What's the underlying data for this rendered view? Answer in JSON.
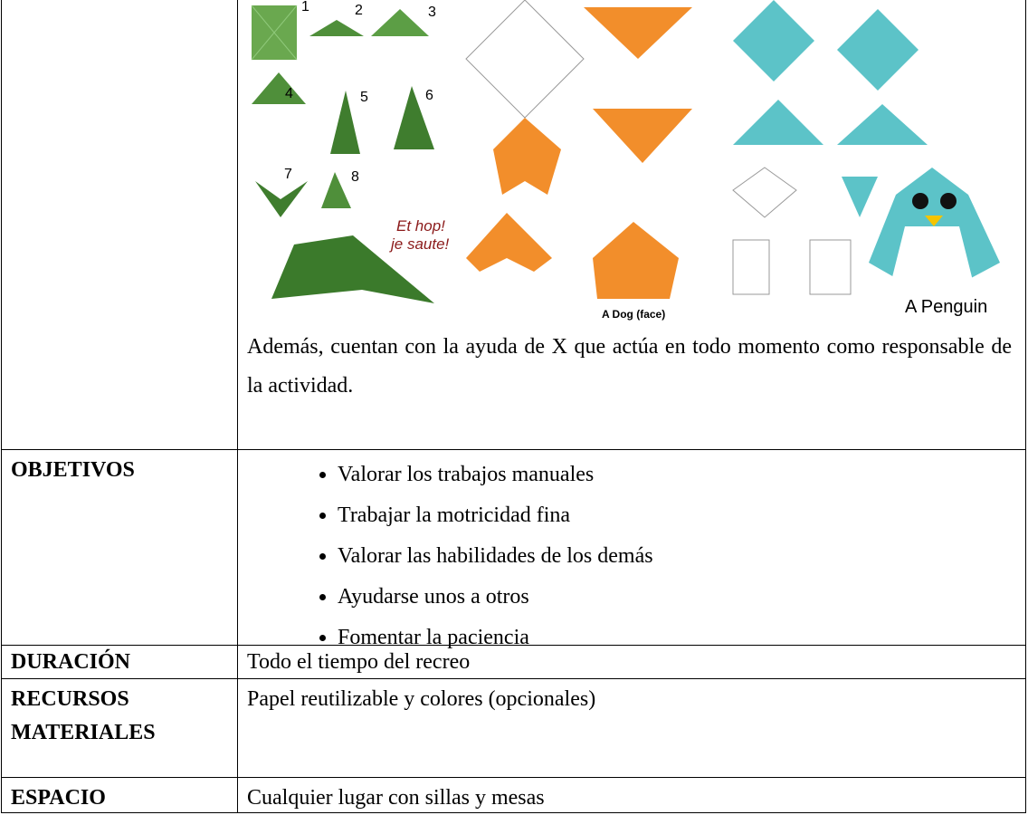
{
  "illustrations": {
    "frog_steps": [
      "1",
      "2",
      "3",
      "4",
      "5",
      "6",
      "7",
      "8"
    ],
    "frog_caption": [
      "Et hop!",
      "je saute!"
    ],
    "dog_caption": "A Dog (face)",
    "penguin_caption": "A Penguin"
  },
  "table": {
    "intro": "Además, cuentan con la ayuda de X que actúa en todo momento como responsable de la actividad.",
    "rows": [
      {
        "label": "OBJETIVOS",
        "items": [
          "Valorar los trabajos manuales",
          "Trabajar la motricidad fina",
          "Valorar las habilidades de los demás",
          "Ayudarse unos a otros",
          "Fomentar la paciencia"
        ]
      },
      {
        "label": "DURACIÓN",
        "value": "Todo el tiempo del recreo"
      },
      {
        "label": "RECURSOS MATERIALES",
        "value": "Papel reutilizable y colores (opcionales)"
      },
      {
        "label": "ESPACIO",
        "value": "Cualquier lugar con sillas y mesas"
      }
    ]
  }
}
